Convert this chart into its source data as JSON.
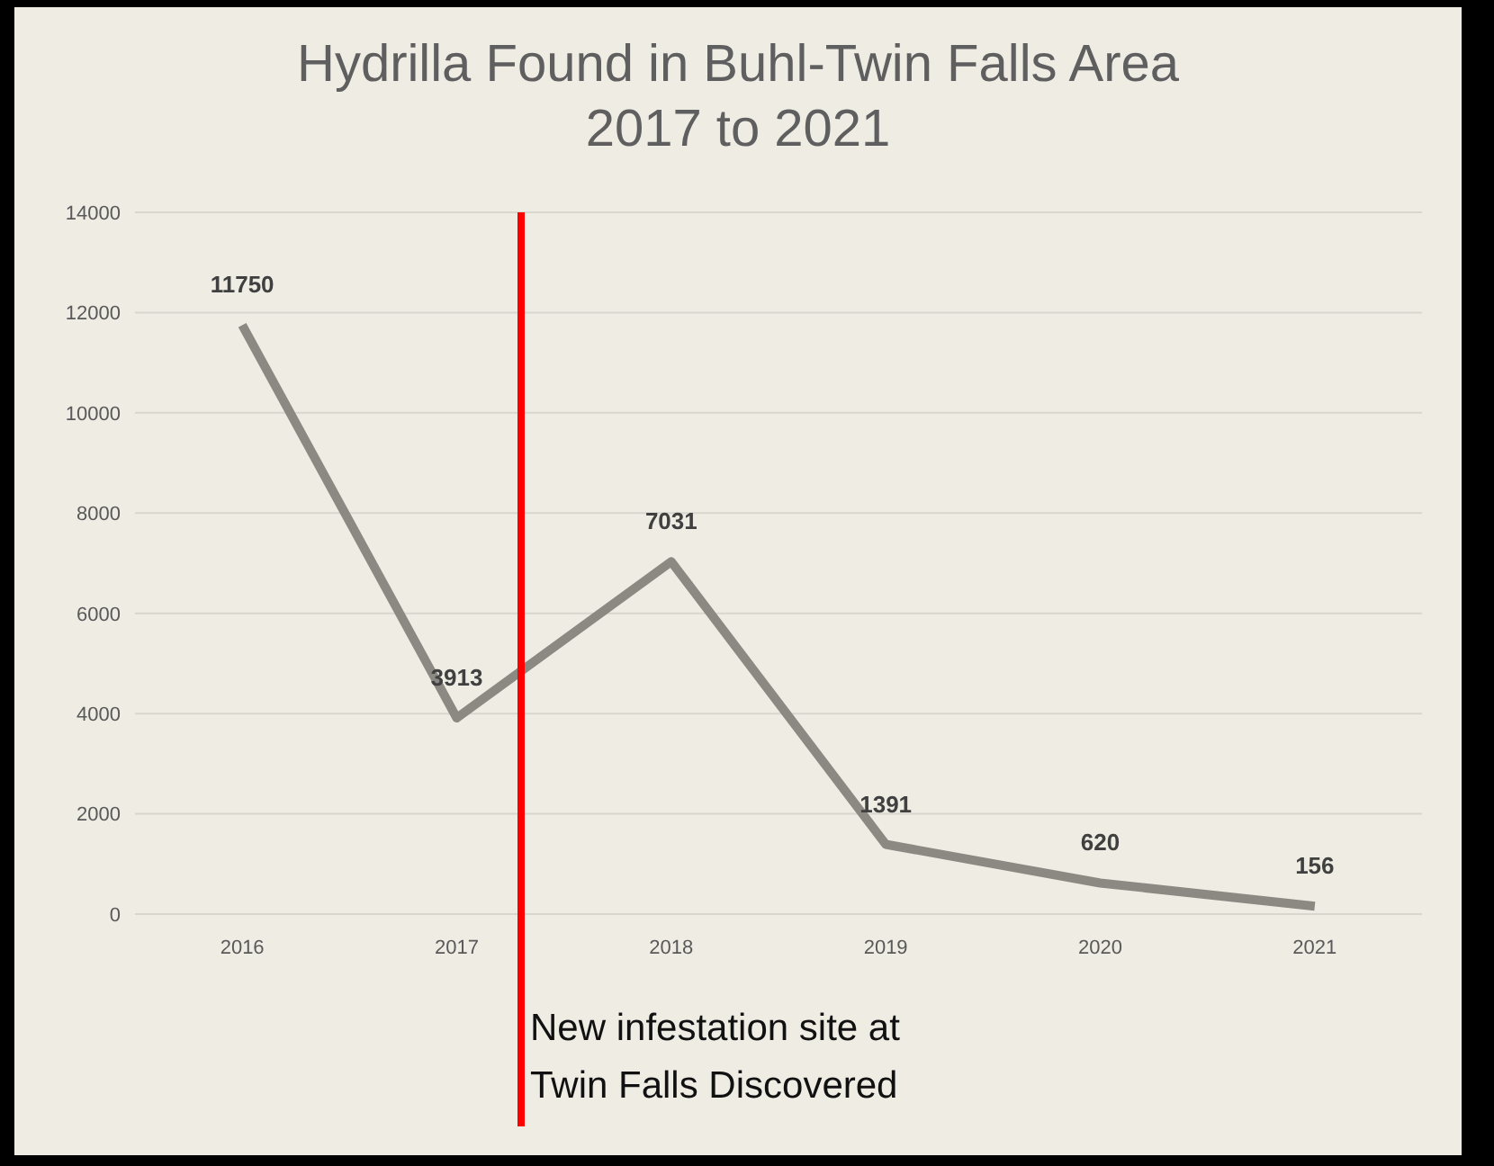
{
  "chart_data": {
    "type": "line",
    "title": "Hydrilla Found in Buhl-Twin Falls Area\n2017 to 2021",
    "x": [
      2016,
      2017,
      2018,
      2019,
      2020,
      2021
    ],
    "xlim": [
      2015.5,
      2021.5
    ],
    "xticks": [
      2016,
      2017,
      2018,
      2019,
      2020,
      2021
    ],
    "series": [
      {
        "color": "#8c8983",
        "values": [
          11750,
          3913,
          7031,
          1391,
          620,
          156
        ]
      }
    ],
    "ylim": [
      0,
      14000
    ],
    "yticks": [
      0,
      2000,
      4000,
      6000,
      8000,
      10000,
      12000,
      14000
    ],
    "grid": "y",
    "marker": "none",
    "line_style": "solid",
    "data_labels": true,
    "ref_lines": [
      {
        "axis": "x",
        "value": 2017.3,
        "label": "New infestation site at\nTwin Falls Discovered",
        "color": "#ff0000"
      }
    ]
  }
}
